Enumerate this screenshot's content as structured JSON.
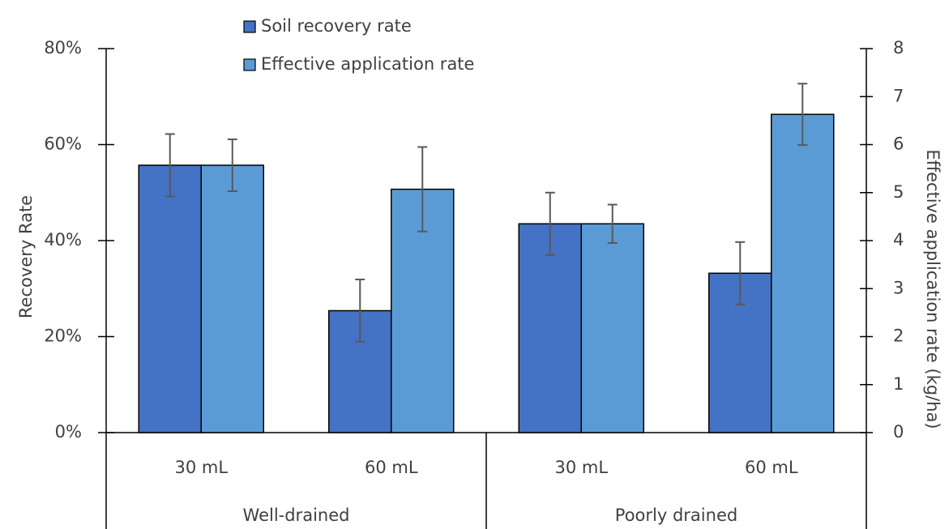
{
  "chart_data": {
    "type": "bar",
    "groups": [
      {
        "name": "Well-drained",
        "categories": [
          "30 mL",
          "60 mL"
        ]
      },
      {
        "name": "Poorly drained",
        "categories": [
          "30 mL",
          "60 mL"
        ]
      }
    ],
    "series": [
      {
        "name": "Soil recovery rate",
        "color": "#4472c4",
        "axis": "y",
        "values": [
          55.7,
          25.4,
          43.5,
          33.2
        ],
        "errors": [
          6.5,
          6.5,
          6.5,
          6.5
        ]
      },
      {
        "name": "Effective application rate",
        "color": "#5b9bd5",
        "axis": "y2",
        "values": [
          5.57,
          5.07,
          4.35,
          6.63
        ],
        "errors": [
          0.54,
          0.88,
          0.4,
          0.64
        ]
      }
    ],
    "ylabel": "Recovery Rate",
    "y2label": "Effective application rate (kg/ha)",
    "ylim": [
      0,
      80
    ],
    "yticks": [
      {
        "value": 0,
        "label": "0%"
      },
      {
        "value": 20,
        "label": "20%"
      },
      {
        "value": 40,
        "label": "40%"
      },
      {
        "value": 60,
        "label": "60%"
      },
      {
        "value": 80,
        "label": "80%"
      }
    ],
    "y2lim": [
      0,
      8
    ],
    "y2ticks": [
      0,
      1,
      2,
      3,
      4,
      5,
      6,
      7,
      8
    ]
  }
}
